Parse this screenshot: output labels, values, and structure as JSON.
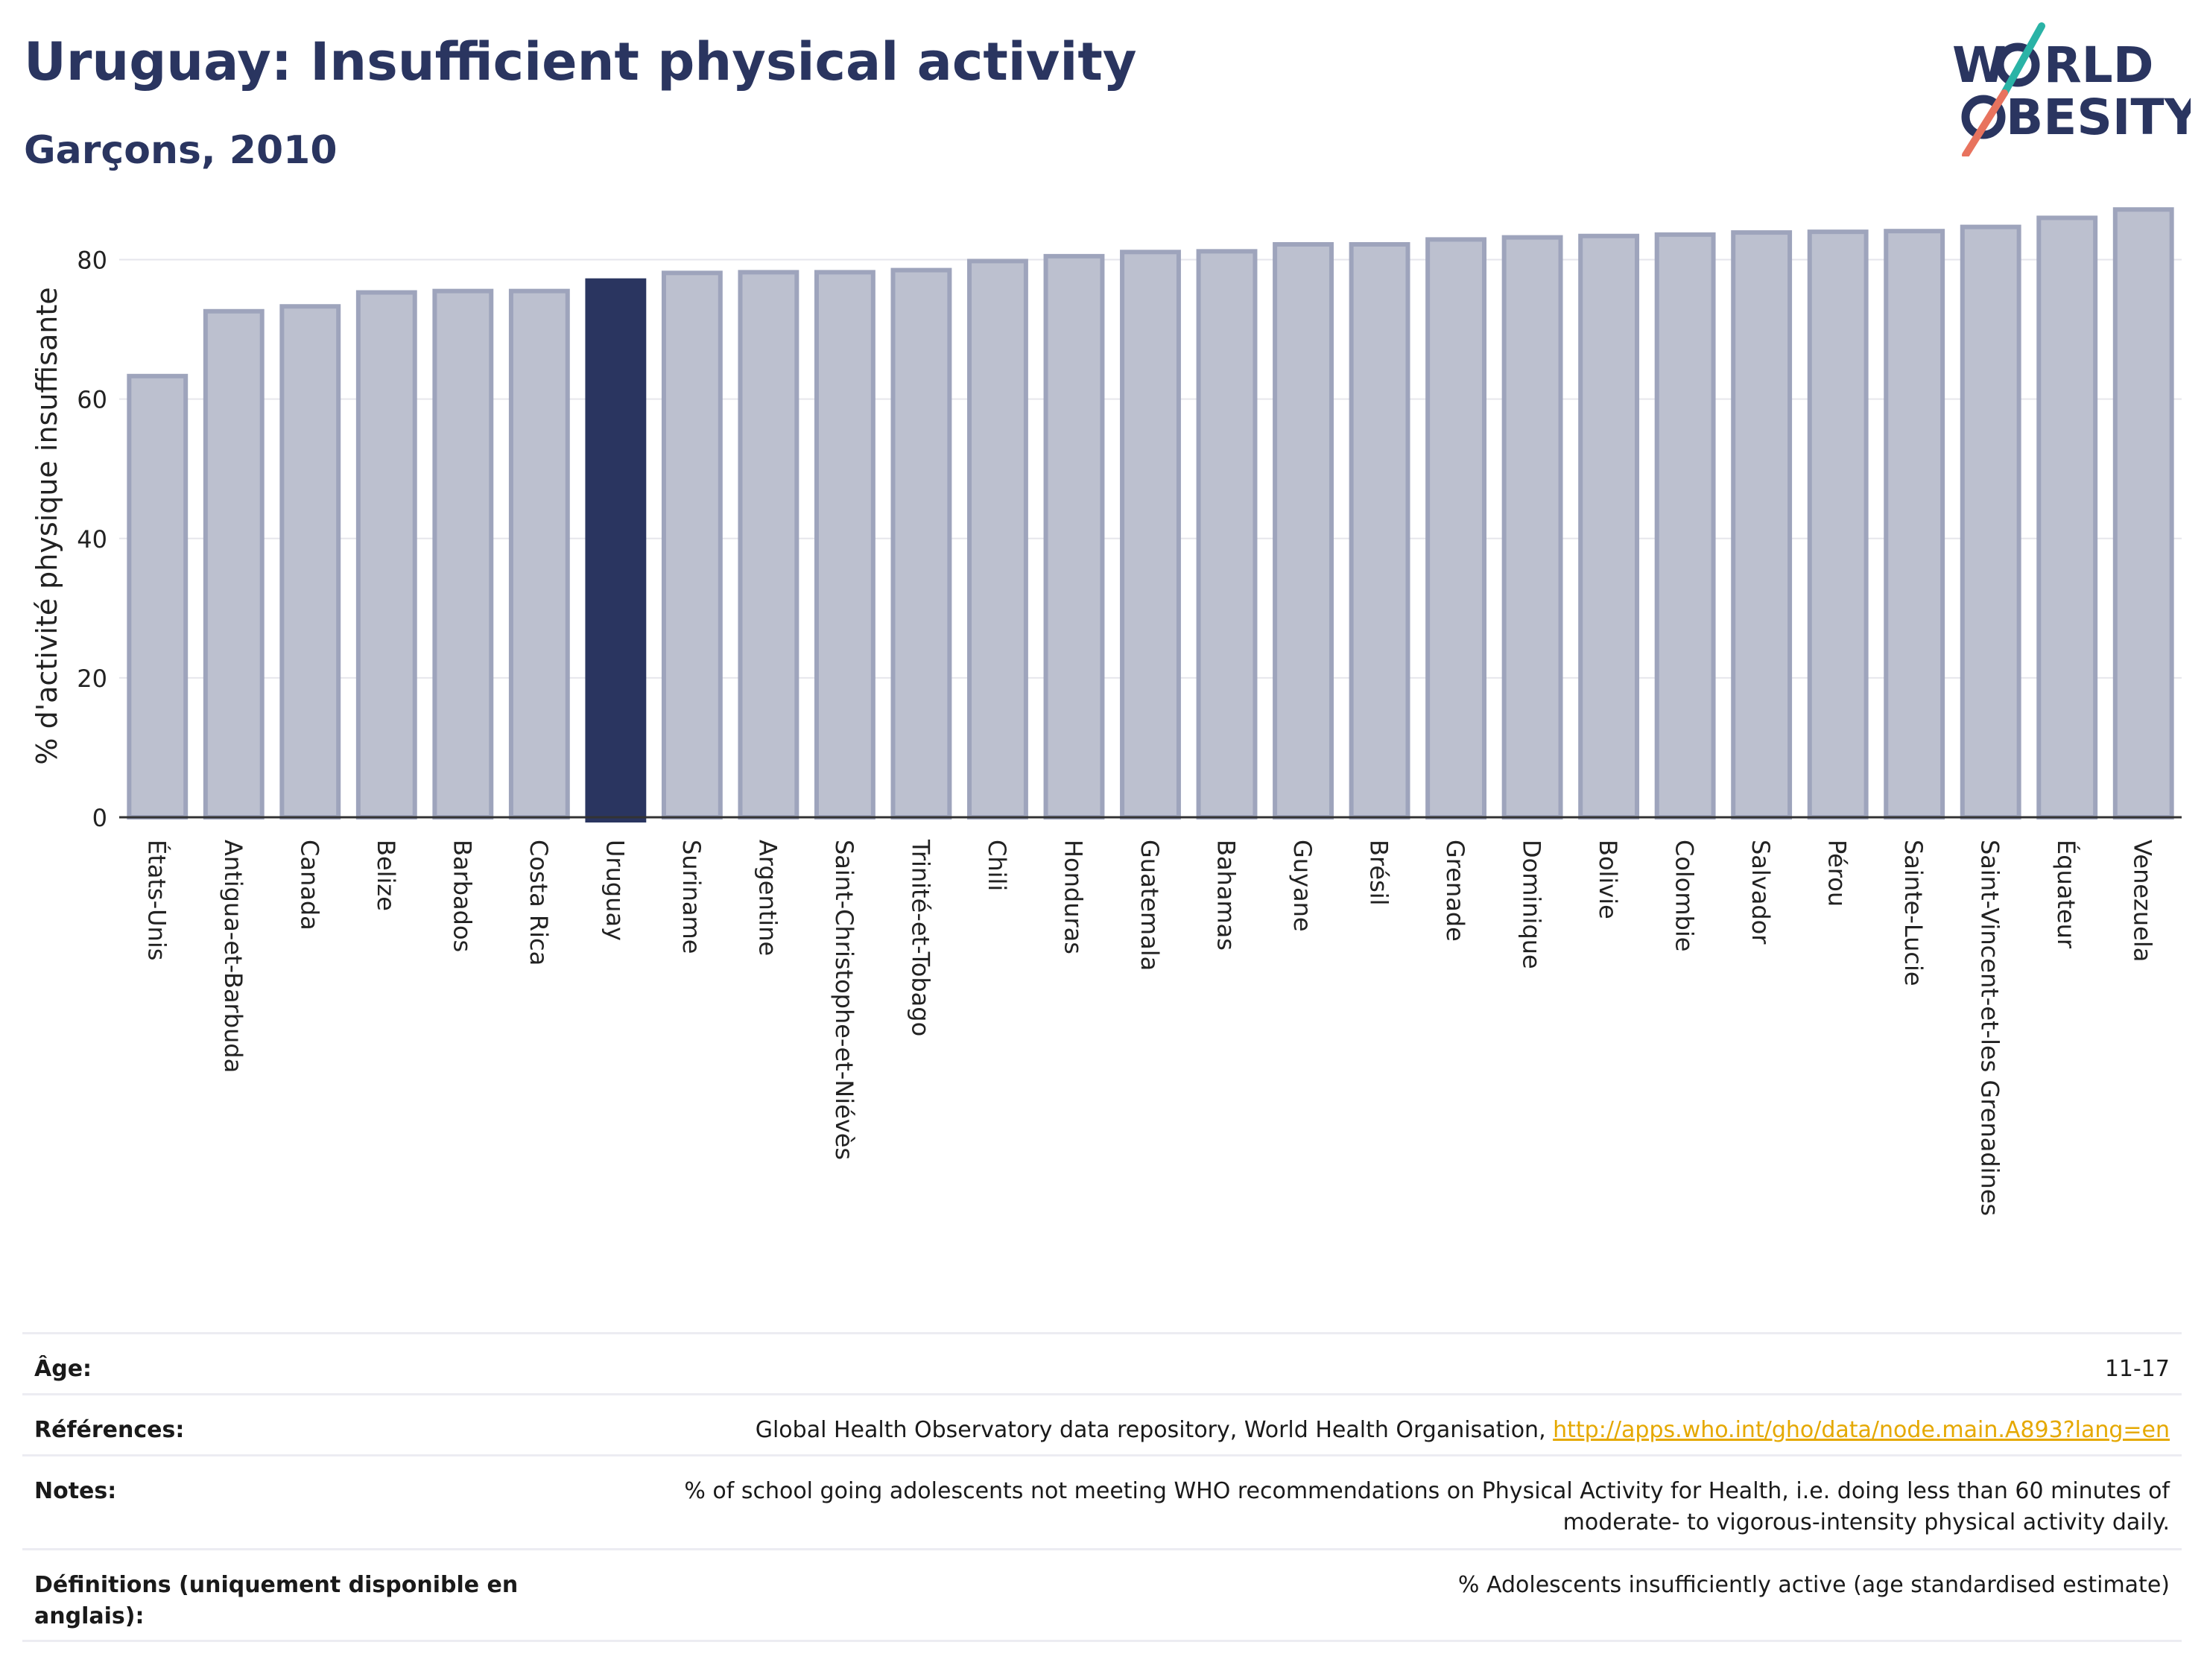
{
  "header": {
    "title": "Uruguay: Insufficient physical activity",
    "subtitle": "Garçons, 2010"
  },
  "logo": {
    "line1_pre": "W",
    "line1_post": "RLD",
    "line2_post": "BESITY",
    "slash_colors": [
      "#2ab3a6",
      "#e8735e"
    ]
  },
  "colors": {
    "bar": "#bcc0cf",
    "bar_edge": "#9ea4bc",
    "highlight": "#2a3560",
    "grid": "#e6e6ec",
    "axis": "#333333"
  },
  "chart_data": {
    "type": "bar",
    "ylabel": "% d'activité physique insuffisante",
    "xlabel": "",
    "ylim": [
      0,
      90
    ],
    "yticks": [
      0,
      20,
      40,
      60,
      80
    ],
    "grid": true,
    "highlight": "Uruguay",
    "categories": [
      "États-Unis",
      "Antigua-et-Barbuda",
      "Canada",
      "Belize",
      "Barbados",
      "Costa Rica",
      "Uruguay",
      "Suriname",
      "Argentine",
      "Saint-Christophe-et-Niévès",
      "Trinité-et-Tobago",
      "Chili",
      "Honduras",
      "Guatemala",
      "Bahamas",
      "Guyane",
      "Brésil",
      "Grenade",
      "Dominique",
      "Bolivie",
      "Colombie",
      "Salvador",
      "Pérou",
      "Sainte-Lucie",
      "Saint-Vincent-et-les Grenadines",
      "Équateur",
      "Venezuela"
    ],
    "values": [
      63.3,
      72.6,
      73.3,
      75.3,
      75.5,
      75.5,
      77.0,
      78.1,
      78.2,
      78.2,
      78.5,
      79.8,
      80.5,
      81.1,
      81.2,
      82.2,
      82.2,
      82.9,
      83.2,
      83.4,
      83.6,
      83.9,
      84.0,
      84.1,
      84.7,
      86.0,
      87.2
    ]
  },
  "meta": {
    "age_label": "Âge:",
    "age_value": "11-17",
    "refs_label": "Références:",
    "refs_text": "Global Health Observatory data repository, World Health Organisation, ",
    "refs_link": "http://apps.who.int/gho/data/node.main.A893?lang=en",
    "notes_label": "Notes:",
    "notes_value": "% of school going adolescents not meeting WHO recommendations on Physical Activity for Health, i.e. doing less than 60 minutes of moderate- to vigorous-intensity physical activity daily.",
    "defs_label": "Définitions (uniquement disponible en anglais):",
    "defs_value": "% Adolescents insufficiently active (age standardised estimate)"
  }
}
